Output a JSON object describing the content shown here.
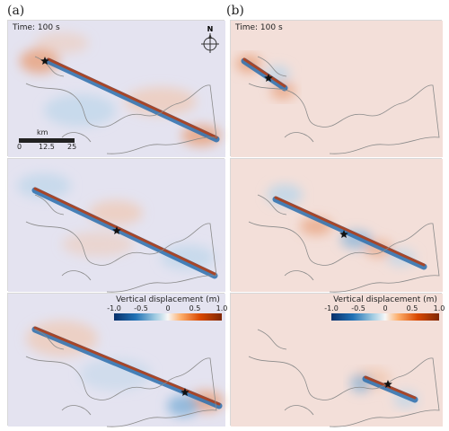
{
  "columns": {
    "a_label": "(a)",
    "b_label": "(b)"
  },
  "time_label": "Time: 100 s",
  "compass": {
    "north_label": "N"
  },
  "scalebar": {
    "unit": "km",
    "ticks": [
      "0",
      "12.5",
      "25"
    ]
  },
  "colorbar": {
    "title": "Vertical displacement (m)",
    "ticks": [
      "-1.0",
      "-0.5",
      "0",
      "0.5",
      "1.0"
    ],
    "colors": {
      "negative": "#08306b",
      "neutral": "#f7f7f7",
      "positive": "#7f2704"
    }
  },
  "colors": {
    "background_a": "#e4e3f0",
    "background_b": "#f3dfd9",
    "coastline": "#8a8a8a",
    "trace_red": "#b2401a",
    "trace_blue": "#2c6fae"
  },
  "markers": {
    "epicenter": "star-icon"
  }
}
